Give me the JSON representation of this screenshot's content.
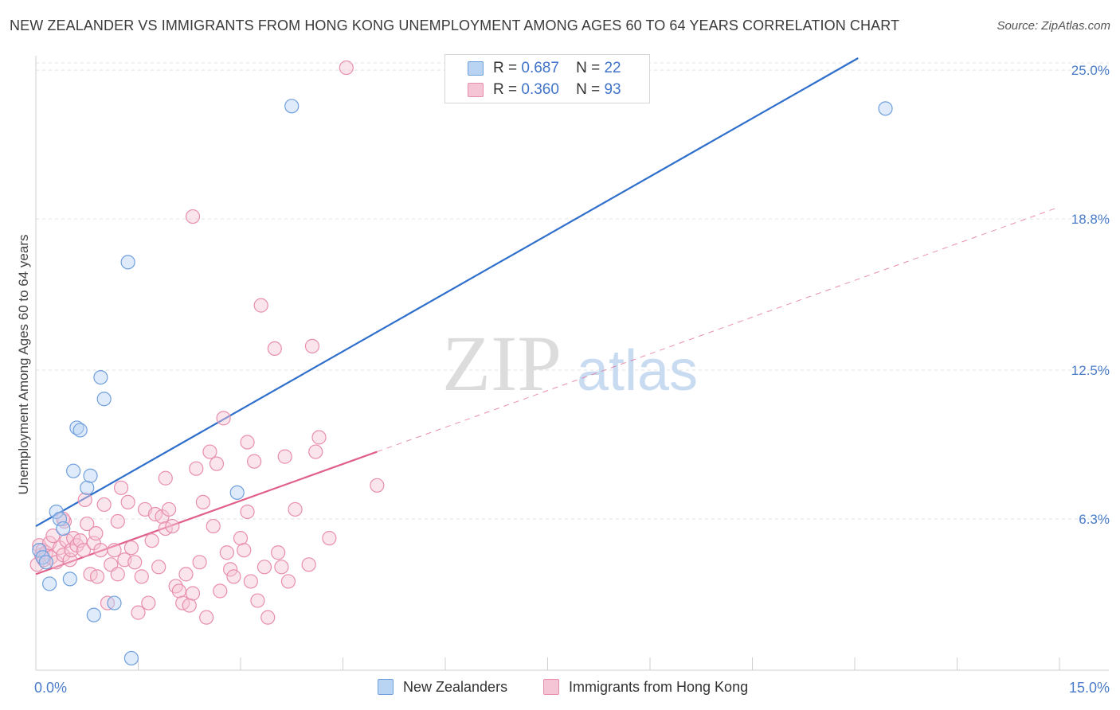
{
  "title": "NEW ZEALANDER VS IMMIGRANTS FROM HONG KONG UNEMPLOYMENT AMONG AGES 60 TO 64 YEARS CORRELATION CHART",
  "source": "Source: ZipAtlas.com",
  "legend": {
    "r_label": "R =",
    "n_label": "N =",
    "series": [
      {
        "r": "0.687",
        "n": "22"
      },
      {
        "r": "0.360",
        "n": "93"
      }
    ]
  },
  "bottom_legend": [
    "New Zealanders",
    "Immigrants from Hong Kong"
  ],
  "colors": {
    "blue_fill": "#b9d3f3",
    "blue_stroke": "#6f9fdc",
    "blue_line": "#2f6fcc",
    "pink_fill": "#f6c5d5",
    "pink_stroke": "#e88ead",
    "pink_line": "#e0608a",
    "tick_label": "#4a7cc9",
    "grid": "#e2e2e2"
  },
  "chart_data": {
    "type": "scatter",
    "title": "NEW ZEALANDER VS IMMIGRANTS FROM HONG KONG UNEMPLOYMENT AMONG AGES 60 TO 64 YEARS CORRELATION CHART",
    "xlabel": "",
    "ylabel": "Unemployment Among Ages 60 to 64 years",
    "xlim": [
      0,
      15
    ],
    "ylim": [
      0,
      25.6
    ],
    "x_tick_labels": [
      "0.0%",
      "15.0%"
    ],
    "y_ticks": [
      6.3,
      12.5,
      18.8,
      25.0
    ],
    "y_tick_labels": [
      "6.3%",
      "12.5%",
      "18.8%",
      "25.0%"
    ],
    "grid": true,
    "watermark": {
      "zip": "ZIP",
      "atlas": "atlas"
    },
    "series": [
      {
        "name": "New Zealanders",
        "trend": {
          "x0": 0,
          "y0": 6.0,
          "x1": 12.05,
          "y1": 25.5,
          "dashed_to": null
        },
        "points": [
          [
            0.05,
            5.0
          ],
          [
            0.1,
            4.7
          ],
          [
            0.15,
            4.5
          ],
          [
            0.2,
            3.6
          ],
          [
            0.3,
            6.6
          ],
          [
            0.35,
            6.3
          ],
          [
            0.4,
            5.9
          ],
          [
            0.5,
            3.8
          ],
          [
            0.55,
            8.3
          ],
          [
            0.6,
            10.1
          ],
          [
            0.65,
            10.0
          ],
          [
            0.75,
            7.6
          ],
          [
            0.8,
            8.1
          ],
          [
            0.85,
            2.3
          ],
          [
            0.95,
            12.2
          ],
          [
            1.0,
            11.3
          ],
          [
            1.15,
            2.8
          ],
          [
            1.35,
            17.0
          ],
          [
            1.4,
            0.5
          ],
          [
            2.95,
            7.4
          ],
          [
            3.75,
            23.5
          ],
          [
            12.45,
            23.4
          ]
        ]
      },
      {
        "name": "Immigrants from Hong Kong",
        "trend": {
          "x0": 0,
          "y0": 4.0,
          "x1": 5.0,
          "y1": 9.1,
          "dashed_to": {
            "x": 15.0,
            "y": 19.3
          }
        },
        "points": [
          [
            0.02,
            4.4
          ],
          [
            0.05,
            5.2
          ],
          [
            0.08,
            4.8
          ],
          [
            0.1,
            5.0
          ],
          [
            0.12,
            4.6
          ],
          [
            0.15,
            4.9
          ],
          [
            0.2,
            5.3
          ],
          [
            0.22,
            4.7
          ],
          [
            0.25,
            5.6
          ],
          [
            0.3,
            4.5
          ],
          [
            0.35,
            5.1
          ],
          [
            0.4,
            4.8
          ],
          [
            0.42,
            6.2
          ],
          [
            0.45,
            5.4
          ],
          [
            0.5,
            4.6
          ],
          [
            0.52,
            5.0
          ],
          [
            0.55,
            5.5
          ],
          [
            0.6,
            5.2
          ],
          [
            0.65,
            5.4
          ],
          [
            0.7,
            5.0
          ],
          [
            0.72,
            7.1
          ],
          [
            0.75,
            6.1
          ],
          [
            0.8,
            4.0
          ],
          [
            0.85,
            5.3
          ],
          [
            0.88,
            5.7
          ],
          [
            0.9,
            3.9
          ],
          [
            0.95,
            5.0
          ],
          [
            1.0,
            6.9
          ],
          [
            1.05,
            2.8
          ],
          [
            1.1,
            4.4
          ],
          [
            1.15,
            5.0
          ],
          [
            1.2,
            6.2
          ],
          [
            1.25,
            7.6
          ],
          [
            1.3,
            4.6
          ],
          [
            1.35,
            7.0
          ],
          [
            1.4,
            5.1
          ],
          [
            1.45,
            4.5
          ],
          [
            1.5,
            2.4
          ],
          [
            1.55,
            3.9
          ],
          [
            1.6,
            6.7
          ],
          [
            1.65,
            2.8
          ],
          [
            1.7,
            5.4
          ],
          [
            1.75,
            6.5
          ],
          [
            1.8,
            4.3
          ],
          [
            1.85,
            6.4
          ],
          [
            1.9,
            5.9
          ],
          [
            1.95,
            6.7
          ],
          [
            2.0,
            6.0
          ],
          [
            2.05,
            3.5
          ],
          [
            2.1,
            3.3
          ],
          [
            2.15,
            2.8
          ],
          [
            2.2,
            4.0
          ],
          [
            2.25,
            2.7
          ],
          [
            2.3,
            3.2
          ],
          [
            2.35,
            8.4
          ],
          [
            2.4,
            4.5
          ],
          [
            2.45,
            7.0
          ],
          [
            2.5,
            2.2
          ],
          [
            2.55,
            9.1
          ],
          [
            2.6,
            6.0
          ],
          [
            2.65,
            8.6
          ],
          [
            2.7,
            3.3
          ],
          [
            2.75,
            10.5
          ],
          [
            2.8,
            4.9
          ],
          [
            2.85,
            4.2
          ],
          [
            2.9,
            3.9
          ],
          [
            3.0,
            5.5
          ],
          [
            3.05,
            5.0
          ],
          [
            3.1,
            6.6
          ],
          [
            3.15,
            3.7
          ],
          [
            3.2,
            8.7
          ],
          [
            3.25,
            2.9
          ],
          [
            3.3,
            15.2
          ],
          [
            3.35,
            4.3
          ],
          [
            3.4,
            2.2
          ],
          [
            3.5,
            13.4
          ],
          [
            3.55,
            4.9
          ],
          [
            3.6,
            4.3
          ],
          [
            3.65,
            8.9
          ],
          [
            3.7,
            3.7
          ],
          [
            3.8,
            6.7
          ],
          [
            4.0,
            4.4
          ],
          [
            4.05,
            13.5
          ],
          [
            4.1,
            9.1
          ],
          [
            4.15,
            9.7
          ],
          [
            4.3,
            5.5
          ],
          [
            4.55,
            25.1
          ],
          [
            5.0,
            7.7
          ],
          [
            2.3,
            18.9
          ],
          [
            1.9,
            8.0
          ],
          [
            0.4,
            6.3
          ],
          [
            1.2,
            4.0
          ],
          [
            3.1,
            9.5
          ]
        ]
      }
    ]
  }
}
